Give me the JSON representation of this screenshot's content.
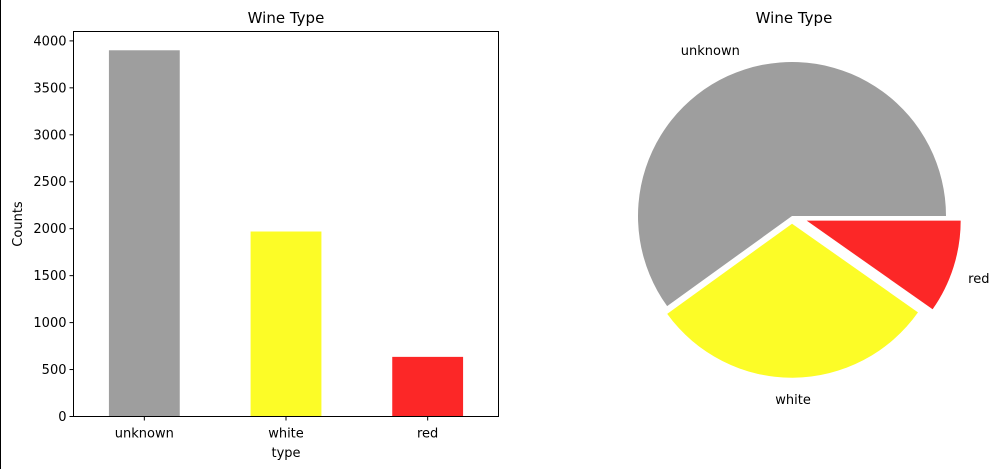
{
  "chart_data": [
    {
      "type": "bar",
      "title": "Wine Type",
      "xlabel": "type",
      "ylabel": "Counts",
      "categories": [
        "unknown",
        "white",
        "red"
      ],
      "values": [
        3900,
        1970,
        635
      ],
      "colors": [
        "#9e9e9e",
        "#fcfc27",
        "#fc2727"
      ],
      "ylim": [
        0,
        4100
      ],
      "yticks": [
        0,
        500,
        1000,
        1500,
        2000,
        2500,
        3000,
        3500,
        4000
      ],
      "ytick_labels": [
        "0",
        "500",
        "1000",
        "1500",
        "2000",
        "2500",
        "3000",
        "3500",
        "4000"
      ],
      "grid": false
    },
    {
      "type": "pie",
      "title": "Wine Type",
      "labels": [
        "unknown",
        "white",
        "red"
      ],
      "values": [
        3900,
        1970,
        635
      ],
      "colors": [
        "#9e9e9e",
        "#fcfc27",
        "#fc2727"
      ],
      "explode": [
        0,
        0.05,
        0.1
      ],
      "startangle_deg": 0
    }
  ]
}
